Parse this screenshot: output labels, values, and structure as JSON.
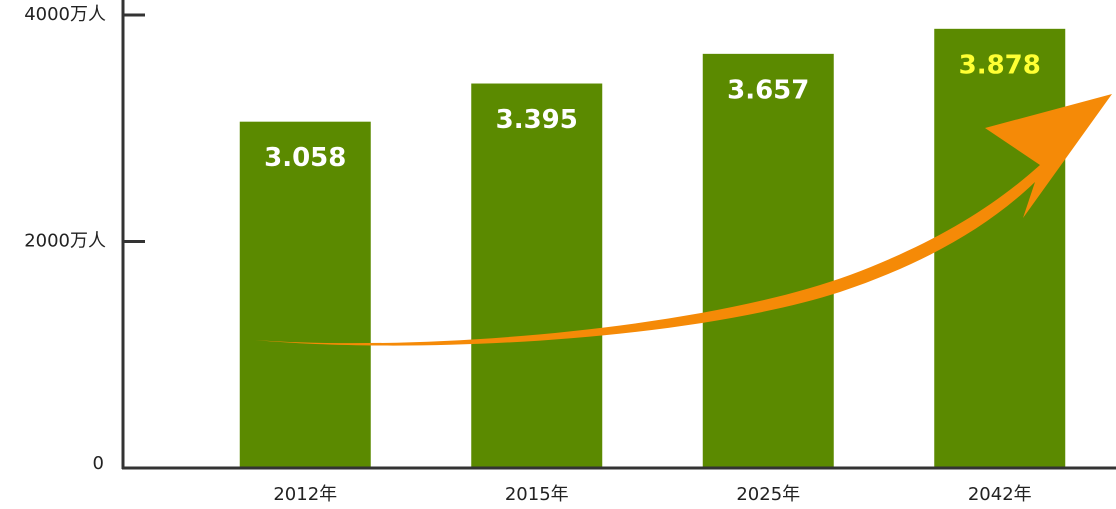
{
  "chart_data": {
    "type": "bar",
    "categories": [
      "2012年",
      "2015年",
      "2025年",
      "2042年"
    ],
    "values": [
      3058,
      3395,
      3657,
      3878
    ],
    "value_labels": [
      "3.058",
      "3.395",
      "3.657",
      "3.878"
    ],
    "value_label_colors": [
      "#ffffff",
      "#ffffff",
      "#ffffff",
      "#ffff33"
    ],
    "color": "#5b8a00",
    "ylim": [
      0,
      4000
    ],
    "yticks": [
      0,
      {
        "value": 2000,
        "label": "2000万人"
      },
      {
        "value": 4000,
        "label": "4000万人"
      }
    ],
    "grid": false
  }
}
